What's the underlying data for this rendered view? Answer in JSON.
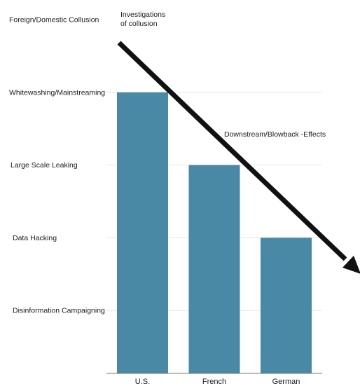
{
  "chart_data": {
    "type": "bar",
    "categories": [
      "U.S.",
      "French",
      "German"
    ],
    "values": [
      4,
      3,
      2
    ],
    "levels": [
      "Disinformation Campaigning",
      "Data Hacking",
      "Large Scale Leaking",
      "Whitewashing/Mainstreaming",
      "Foreign/Domestic Collusion"
    ],
    "ylim": [
      0,
      5
    ],
    "grid": true,
    "bar_color": "#4a89a6",
    "annotations": {
      "top_lines": [
        "Investigations",
        "of collusion"
      ],
      "arrow_label": "Downstream/Blowback -Effects"
    }
  }
}
